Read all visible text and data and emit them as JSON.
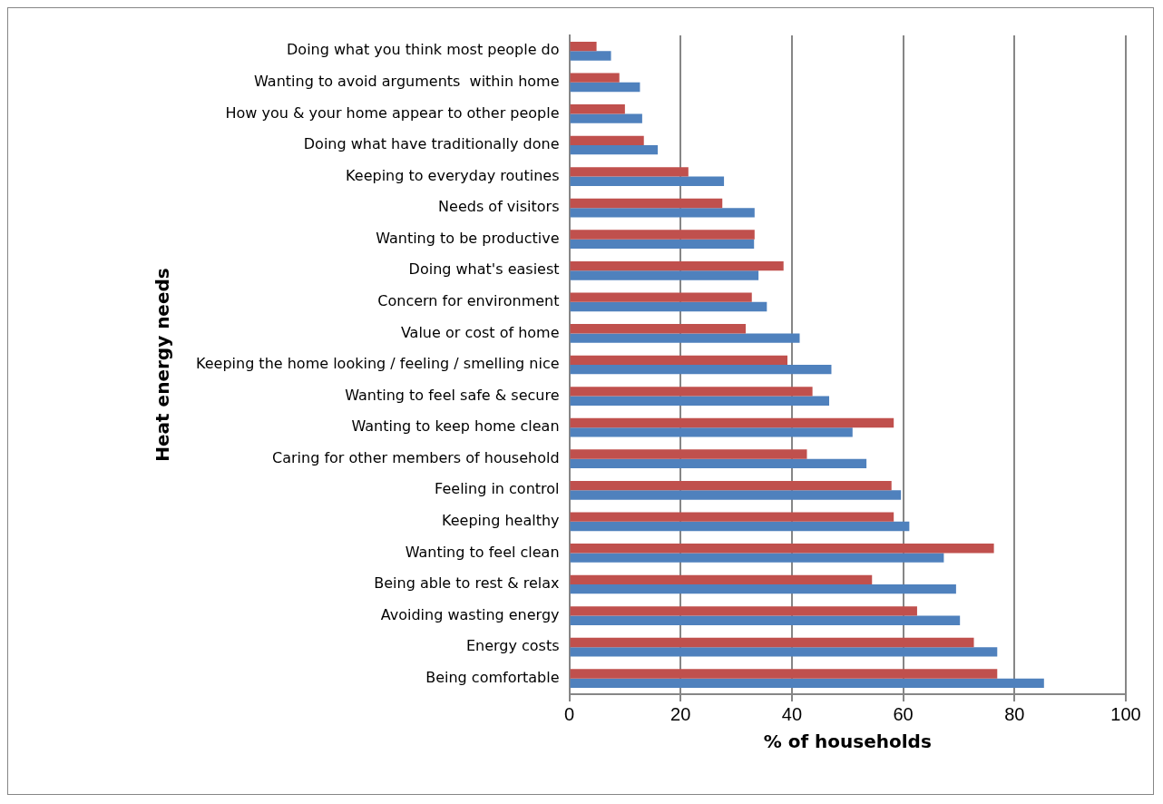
{
  "chart_data": {
    "type": "bar",
    "orientation": "horizontal",
    "xlabel": "% of households",
    "ylabel": "Heat energy needs",
    "categories": [
      "Doing what you think most people do",
      "Wanting to avoid arguments  within home",
      "How you & your home appear to other people",
      "Doing what have traditionally done",
      "Keeping to everyday routines",
      "Needs of visitors",
      "Wanting to be productive",
      "Doing what's easiest",
      "Concern for environment",
      "Value or cost of home",
      "Keeping the home looking / feeling / smelling nice",
      "Wanting to feel safe & secure",
      "Wanting to keep home clean",
      "Caring for other members of household",
      "Feeling in control",
      "Keeping healthy",
      "Wanting to feel clean",
      "Being able to rest & relax",
      "Avoiding wasting energy",
      "Energy costs",
      "Being comfortable"
    ],
    "series": [
      {
        "color": "#c0504d",
        "values": [
          4.9,
          9.0,
          10.0,
          13.4,
          21.4,
          27.5,
          33.3,
          38.5,
          32.8,
          31.7,
          39.2,
          43.7,
          58.3,
          42.7,
          57.9,
          58.3,
          76.3,
          54.4,
          62.5,
          72.7,
          76.9
        ]
      },
      {
        "color": "#4f81bd",
        "values": [
          7.5,
          12.7,
          13.1,
          15.9,
          27.8,
          33.3,
          33.2,
          34.0,
          35.5,
          41.4,
          47.1,
          46.7,
          50.9,
          53.4,
          59.6,
          61.1,
          67.3,
          69.5,
          70.2,
          76.9,
          85.3
        ]
      }
    ],
    "xlim": [
      0,
      100
    ],
    "xticks": [
      0,
      20,
      40,
      60,
      80,
      100
    ],
    "grid": "x",
    "legend": false
  }
}
